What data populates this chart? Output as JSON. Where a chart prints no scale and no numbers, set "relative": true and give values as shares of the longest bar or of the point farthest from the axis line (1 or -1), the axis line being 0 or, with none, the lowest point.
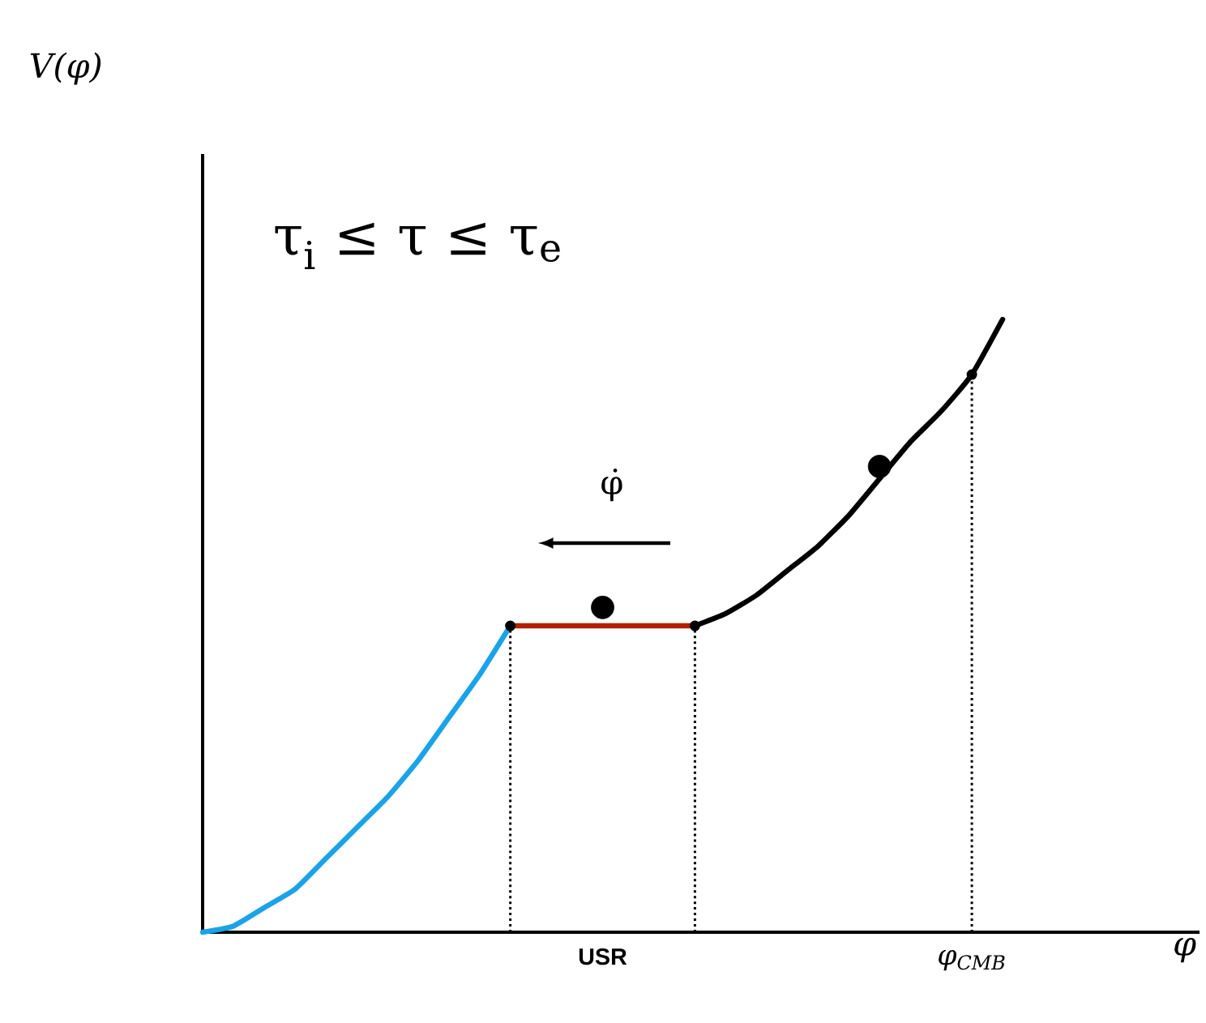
{
  "chart_data": {
    "type": "line",
    "relative": true,
    "categories": [
      null,
      null,
      null,
      null,
      null,
      null,
      null,
      null,
      null,
      null,
      null,
      null,
      null,
      "USR",
      null,
      null,
      null,
      null,
      null,
      null,
      null,
      null,
      null,
      null,
      null,
      "φ$_{CMB}$",
      null
    ],
    "annotations": [
      "τ$_{i}$ ≤ τ ≤ τ$_{e}$",
      "φ̇",
      "V(φ)",
      "φ"
    ],
    "series": [
      {
        "color": "#1aa3e8",
        "marker": "none",
        "line_style": "solid",
        "values": [
          0,
          0.01,
          0.04,
          0.07,
          0.12,
          0.17,
          0.22,
          0.28,
          0.35,
          0.42,
          0.5,
          null,
          null,
          null,
          null,
          null,
          null,
          null,
          null,
          null,
          null,
          null,
          null,
          null,
          null,
          null,
          null
        ]
      },
      {
        "color": "#b22000",
        "marker": "none",
        "line_style": "solid",
        "values": [
          null,
          null,
          null,
          null,
          null,
          null,
          null,
          null,
          null,
          null,
          0.5,
          0.5,
          0.5,
          0.5,
          0.5,
          0.5,
          0.5,
          null,
          null,
          null,
          null,
          null,
          null,
          null,
          null,
          null,
          null
        ]
      },
      {
        "color": "#000000",
        "marker": "none",
        "line_style": "solid",
        "values": [
          null,
          null,
          null,
          null,
          null,
          null,
          null,
          null,
          null,
          null,
          null,
          null,
          null,
          null,
          null,
          null,
          0.5,
          0.52,
          0.55,
          0.59,
          0.63,
          0.68,
          0.74,
          0.8,
          0.85,
          0.91,
          1.0
        ]
      },
      {
        "type": "lollipop",
        "color": "#000000",
        "marker": "circle",
        "line_style": "dotted",
        "values": [
          null,
          null,
          null,
          null,
          null,
          null,
          null,
          null,
          null,
          null,
          0.5,
          null,
          null,
          null,
          null,
          null,
          0.5,
          null,
          null,
          null,
          null,
          null,
          null,
          null,
          null,
          0.91,
          null
        ]
      },
      {
        "type": "scatter",
        "color": "#000000",
        "marker": "circle",
        "values": [
          null,
          null,
          null,
          null,
          null,
          null,
          null,
          null,
          null,
          null,
          null,
          null,
          null,
          0.53,
          null,
          null,
          null,
          null,
          null,
          null,
          null,
          null,
          0.76,
          null,
          null,
          null,
          null
        ]
      }
    ]
  }
}
